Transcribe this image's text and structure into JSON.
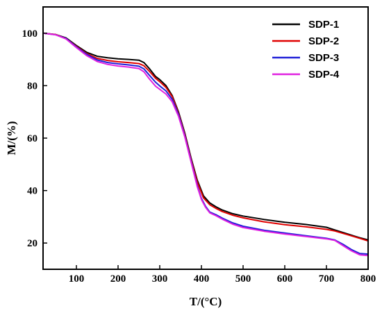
{
  "chart_data": {
    "type": "line",
    "xlabel": "T/(°C)",
    "ylabel": "M/(%)",
    "xlim": [
      20,
      800
    ],
    "ylim": [
      10,
      110
    ],
    "xticks": [
      100,
      200,
      300,
      400,
      500,
      600,
      700,
      800
    ],
    "yticks": [
      20,
      40,
      60,
      80,
      100
    ],
    "grid": false,
    "legend_position": "top-right",
    "series": [
      {
        "name": "SDP-1",
        "color": "#000000",
        "x": [
          20,
          50,
          75,
          100,
          125,
          150,
          175,
          200,
          225,
          250,
          262,
          275,
          290,
          300,
          315,
          330,
          345,
          360,
          375,
          390,
          405,
          420,
          435,
          450,
          475,
          500,
          550,
          600,
          650,
          700,
          720,
          750,
          780,
          800
        ],
        "y": [
          100,
          99.5,
          98.2,
          95.3,
          92.7,
          91.2,
          90.6,
          90.2,
          90.0,
          89.7,
          88.8,
          86.5,
          83.5,
          82.3,
          80.0,
          76.2,
          70.0,
          62.0,
          52.5,
          44.0,
          38.0,
          35.3,
          33.8,
          32.6,
          31.2,
          30.3,
          29.0,
          27.9,
          27.1,
          26.0,
          25.0,
          23.5,
          22.0,
          21.2
        ]
      },
      {
        "name": "SDP-2",
        "color": "#e00000",
        "x": [
          20,
          50,
          75,
          100,
          125,
          150,
          175,
          200,
          225,
          250,
          262,
          275,
          290,
          300,
          315,
          330,
          345,
          360,
          375,
          390,
          405,
          420,
          435,
          450,
          475,
          500,
          550,
          600,
          650,
          700,
          720,
          750,
          780,
          800
        ],
        "y": [
          100,
          99.5,
          98.0,
          95.0,
          92.2,
          90.4,
          89.6,
          89.1,
          88.8,
          88.4,
          87.6,
          85.5,
          82.8,
          81.5,
          79.3,
          75.8,
          69.5,
          61.5,
          52.0,
          43.3,
          37.2,
          34.6,
          33.2,
          32.0,
          30.6,
          29.6,
          28.1,
          27.0,
          26.2,
          25.2,
          24.6,
          23.2,
          21.8,
          20.8
        ]
      },
      {
        "name": "SDP-3",
        "color": "#2020d8",
        "x": [
          20,
          50,
          75,
          100,
          125,
          150,
          175,
          200,
          225,
          250,
          262,
          275,
          290,
          300,
          315,
          330,
          345,
          360,
          375,
          390,
          400,
          410,
          420,
          435,
          450,
          475,
          500,
          550,
          600,
          650,
          700,
          720,
          740,
          760,
          780,
          800
        ],
        "y": [
          100,
          99.4,
          98.0,
          94.8,
          91.9,
          89.8,
          88.8,
          88.3,
          87.9,
          87.4,
          86.4,
          84.0,
          81.3,
          79.9,
          78.0,
          74.8,
          69.0,
          61.0,
          51.5,
          42.0,
          37.0,
          34.0,
          31.8,
          30.8,
          29.5,
          27.7,
          26.4,
          24.9,
          23.8,
          22.8,
          21.8,
          21.2,
          19.5,
          17.5,
          16.0,
          15.8
        ]
      },
      {
        "name": "SDP-4",
        "color": "#e020e0",
        "x": [
          20,
          50,
          75,
          100,
          125,
          150,
          175,
          200,
          225,
          250,
          262,
          275,
          290,
          300,
          315,
          330,
          345,
          360,
          375,
          390,
          400,
          410,
          420,
          435,
          450,
          475,
          500,
          550,
          600,
          650,
          700,
          720,
          740,
          760,
          780,
          800
        ],
        "y": [
          100,
          99.4,
          97.8,
          94.5,
          91.4,
          89.2,
          88.1,
          87.5,
          87.1,
          86.5,
          85.3,
          82.6,
          79.8,
          78.6,
          76.8,
          73.8,
          68.3,
          60.5,
          51.0,
          41.5,
          36.6,
          33.6,
          31.5,
          30.4,
          29.1,
          27.2,
          25.9,
          24.5,
          23.4,
          22.5,
          21.6,
          21.0,
          19.0,
          17.0,
          15.5,
          15.2
        ]
      }
    ]
  }
}
